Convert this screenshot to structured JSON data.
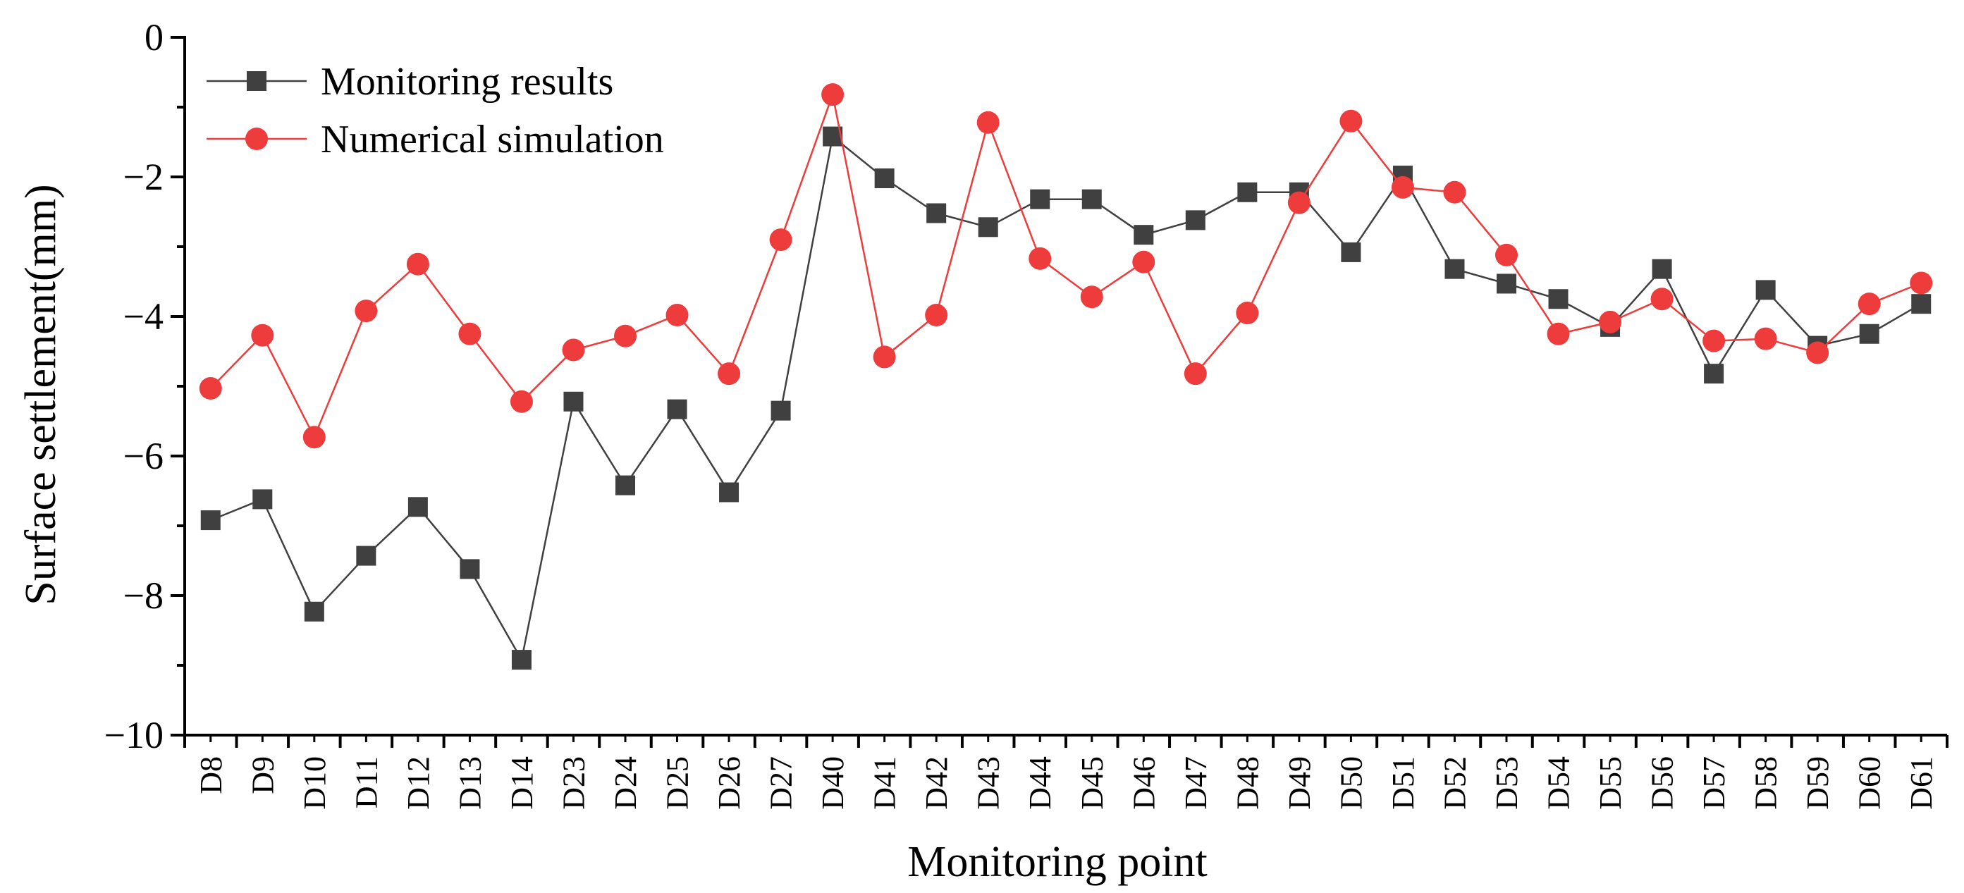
{
  "chart_data": {
    "type": "line",
    "title": "",
    "xlabel": "Monitoring point",
    "ylabel": "Surface settlement(mm)",
    "ylim": [
      -10,
      0
    ],
    "yticks": [
      0,
      -2,
      -4,
      -6,
      -8,
      -10
    ],
    "ytick_labels": [
      "0",
      "−2",
      "−4",
      "−6",
      "−8",
      "−10"
    ],
    "grid": false,
    "legend_position": "top-left",
    "categories": [
      "D8",
      "D9",
      "D10",
      "D11",
      "D12",
      "D13",
      "D14",
      "D23",
      "D24",
      "D25",
      "D26",
      "D27",
      "D40",
      "D41",
      "D42",
      "D43",
      "D44",
      "D45",
      "D46",
      "D47",
      "D48",
      "D49",
      "D50",
      "D51",
      "D52",
      "D53",
      "D54",
      "D55",
      "D56",
      "D57",
      "D58",
      "D59",
      "D60",
      "D61"
    ],
    "series": [
      {
        "name": "Monitoring results",
        "color": "#404040",
        "marker": "square",
        "values": [
          -6.92,
          -6.62,
          -8.23,
          -7.43,
          -6.73,
          -7.62,
          -8.92,
          -5.22,
          -6.42,
          -5.33,
          -6.52,
          -5.35,
          -1.42,
          -2.02,
          -2.52,
          -2.72,
          -2.32,
          -2.32,
          -2.83,
          -2.62,
          -2.22,
          -2.22,
          -3.08,
          -1.98,
          -3.32,
          -3.53,
          -3.75,
          -4.15,
          -3.32,
          -4.82,
          -3.62,
          -4.42,
          -4.25,
          -3.82
        ]
      },
      {
        "name": "Numerical simulation",
        "color": "#ee3b3b",
        "marker": "circle",
        "values": [
          -5.03,
          -4.27,
          -5.73,
          -3.92,
          -3.25,
          -4.25,
          -5.22,
          -4.48,
          -4.28,
          -3.98,
          -4.82,
          -2.9,
          -0.82,
          -4.58,
          -3.98,
          -1.22,
          -3.17,
          -3.72,
          -3.22,
          -4.82,
          -3.95,
          -2.37,
          -1.2,
          -2.15,
          -2.22,
          -3.12,
          -4.25,
          -4.08,
          -3.75,
          -4.35,
          -4.32,
          -4.52,
          -3.82,
          -3.52
        ]
      }
    ]
  }
}
